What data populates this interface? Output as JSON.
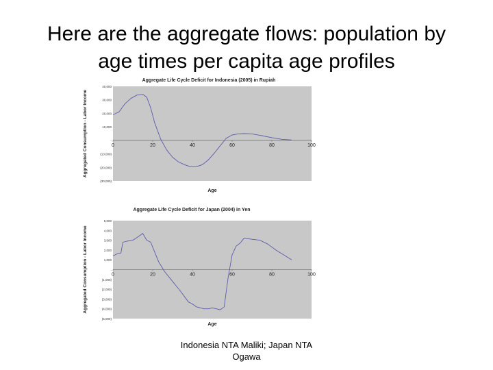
{
  "slide": {
    "title_line1": "Here are the aggregate flows: population by",
    "title_line2": "age times per capita age profiles",
    "caption_line1": "Indonesia NTA Maliki; Japan NTA",
    "caption_line2": "Ogawa"
  },
  "chart_data": [
    {
      "type": "line",
      "title": "Aggregate Life Cycle Deficit for Indonesia (2005) in Rupiah",
      "xlabel": "Age",
      "ylabel": "Aggregated Consumption - Labor Income",
      "xlim": [
        0,
        100
      ],
      "ylim": [
        -30000,
        40000
      ],
      "xticks": [
        "0",
        "20",
        "40",
        "60",
        "80",
        "100"
      ],
      "yticks": [
        {
          "value": 40000,
          "label": "40,000"
        },
        {
          "value": 30000,
          "label": "30,000"
        },
        {
          "value": 20000,
          "label": "20,000"
        },
        {
          "value": 10000,
          "label": "10,000"
        },
        {
          "value": 0,
          "label": "-"
        },
        {
          "value": -10000,
          "label": "(10,000)"
        },
        {
          "value": -20000,
          "label": "(20,000)"
        },
        {
          "value": -30000,
          "label": "(30,000)"
        }
      ],
      "grid": false,
      "series": [
        {
          "color": "#5a5aa8",
          "x": [
            0,
            3,
            6,
            9,
            12,
            15,
            17,
            19,
            21,
            24,
            27,
            30,
            33,
            36,
            39,
            42,
            45,
            48,
            51,
            54,
            57,
            60,
            63,
            66,
            70,
            75,
            80,
            85,
            90
          ],
          "y": [
            19000,
            21000,
            27000,
            31000,
            33500,
            34000,
            32000,
            24000,
            13000,
            1000,
            -7000,
            -12500,
            -16000,
            -18000,
            -19500,
            -19500,
            -18000,
            -14500,
            -9500,
            -4000,
            1500,
            4000,
            4800,
            5000,
            4800,
            3500,
            2000,
            800,
            300
          ]
        }
      ]
    },
    {
      "type": "line",
      "title": "Aggregate Life Cycle Deficit for Japan (2004) in Yen",
      "xlabel": "Age",
      "ylabel": "Aggregated Consumption - Labor Income",
      "xlim": [
        0,
        100
      ],
      "ylim": [
        -5000,
        5000
      ],
      "xticks": [
        "0",
        "20",
        "40",
        "60",
        "80",
        "100"
      ],
      "yticks": [
        {
          "value": 5000,
          "label": "5,000"
        },
        {
          "value": 4000,
          "label": "4,000"
        },
        {
          "value": 3000,
          "label": "3,000"
        },
        {
          "value": 2000,
          "label": "2,000"
        },
        {
          "value": 1000,
          "label": "1,000"
        },
        {
          "value": 0,
          "label": "-"
        },
        {
          "value": -1000,
          "label": "(1,000)"
        },
        {
          "value": -2000,
          "label": "(2,000)"
        },
        {
          "value": -3000,
          "label": "(3,000)"
        },
        {
          "value": -4000,
          "label": "(4,000)"
        },
        {
          "value": -5000,
          "label": "(5,000)"
        }
      ],
      "grid": false,
      "series": [
        {
          "color": "#5a5aa8",
          "x": [
            0,
            2,
            4,
            5,
            7,
            10,
            13,
            15,
            17,
            19,
            21,
            23,
            26,
            30,
            34,
            38,
            40,
            42,
            44,
            46,
            48,
            50,
            52,
            54,
            56,
            58,
            60,
            62,
            64,
            66,
            70,
            74,
            78,
            82,
            86,
            90
          ],
          "y": [
            1400,
            1600,
            1700,
            2800,
            2900,
            3000,
            3400,
            3700,
            3000,
            2800,
            1800,
            800,
            -200,
            -1200,
            -2200,
            -3300,
            -3500,
            -3800,
            -3900,
            -4000,
            -4000,
            -3900,
            -4000,
            -4100,
            -3800,
            -800,
            1500,
            2400,
            2700,
            3200,
            3100,
            3000,
            2600,
            2000,
            1500,
            1000
          ]
        }
      ]
    }
  ]
}
